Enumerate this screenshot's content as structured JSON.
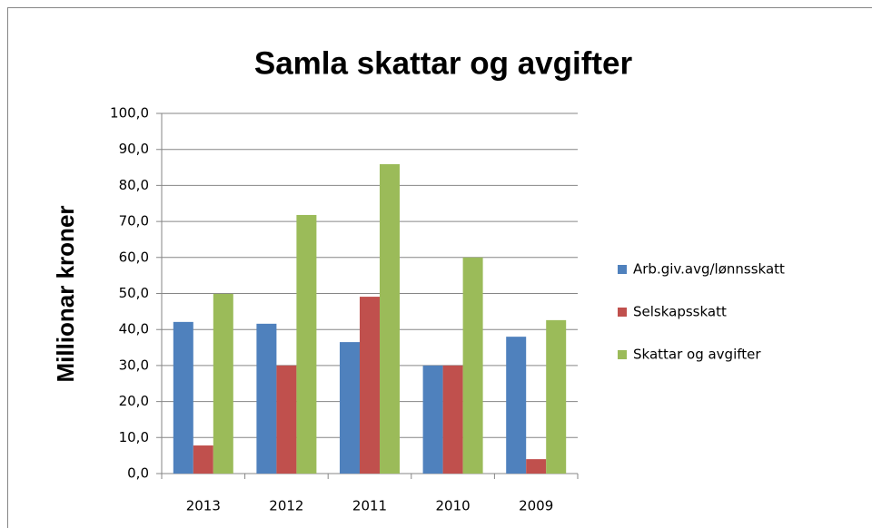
{
  "chart_data": {
    "type": "bar",
    "title": "Samla skattar og avgifter",
    "y_label": "Millionar kroner",
    "categories": [
      "2013",
      "2012",
      "2011",
      "2010",
      "2009"
    ],
    "series": [
      {
        "name": "Arb.giv.avg/lønnsskatt",
        "color": "#4f81bd",
        "values": [
          42.1,
          41.6,
          36.5,
          30,
          38
        ]
      },
      {
        "name": "Selskapsskatt",
        "color": "#c0504d",
        "values": [
          7.8,
          30,
          49.1,
          30,
          4
        ]
      },
      {
        "name": "Skattar og avgifter",
        "color": "#9bbb59",
        "values": [
          49.9,
          71.8,
          85.9,
          60,
          42.6
        ]
      }
    ],
    "ylim": [
      0,
      100
    ],
    "yticks": [
      {
        "value": 0,
        "label": "0,0"
      },
      {
        "value": 10,
        "label": "10,0"
      },
      {
        "value": 20,
        "label": "20,0"
      },
      {
        "value": 30,
        "label": "30,0"
      },
      {
        "value": 40,
        "label": "40,0"
      },
      {
        "value": 50,
        "label": "50,0"
      },
      {
        "value": 60,
        "label": "60,0"
      },
      {
        "value": 70,
        "label": "70,0"
      },
      {
        "value": 80,
        "label": "80,0"
      },
      {
        "value": 90,
        "label": "90,0"
      },
      {
        "value": 100,
        "label": "100,0"
      }
    ],
    "grid": true,
    "legend": "right"
  }
}
